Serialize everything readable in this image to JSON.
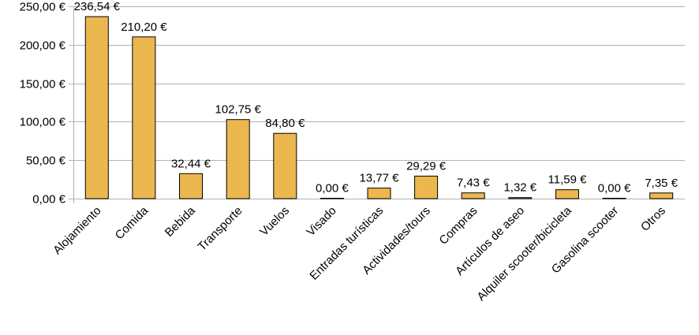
{
  "chart_data": {
    "type": "bar",
    "categories": [
      "Alojamiento",
      "Comida",
      "Bebida",
      "Transporte",
      "Vuelos",
      "Visado",
      "Entradas turísticas",
      "Actividades/tours",
      "Compras",
      "Artículos de aseo",
      "Alquiler scooter/bicicleta",
      "Gasolina scooter",
      "Otros"
    ],
    "values": [
      236.54,
      210.2,
      32.44,
      102.75,
      84.8,
      0.0,
      13.77,
      29.29,
      7.43,
      1.32,
      11.59,
      0.0,
      7.35
    ],
    "data_labels": [
      "236,54 €",
      "210,20 €",
      "32,44 €",
      "102,75 €",
      "84,80 €",
      "0,00 €",
      "13,77 €",
      "29,29 €",
      "7,43 €",
      "1,32 €",
      "11,59 €",
      "0,00 €",
      "7,35 €"
    ],
    "ytick_values": [
      0,
      50,
      100,
      150,
      200,
      250
    ],
    "ytick_labels": [
      "0,00 €",
      "50,00 €",
      "100,00 €",
      "150,00 €",
      "200,00 €",
      "250,00 €"
    ],
    "ylim": [
      0,
      250
    ],
    "title": "",
    "xlabel": "",
    "ylabel": "",
    "grid": true,
    "legend": "none",
    "bar_color": "#ebb74f"
  }
}
